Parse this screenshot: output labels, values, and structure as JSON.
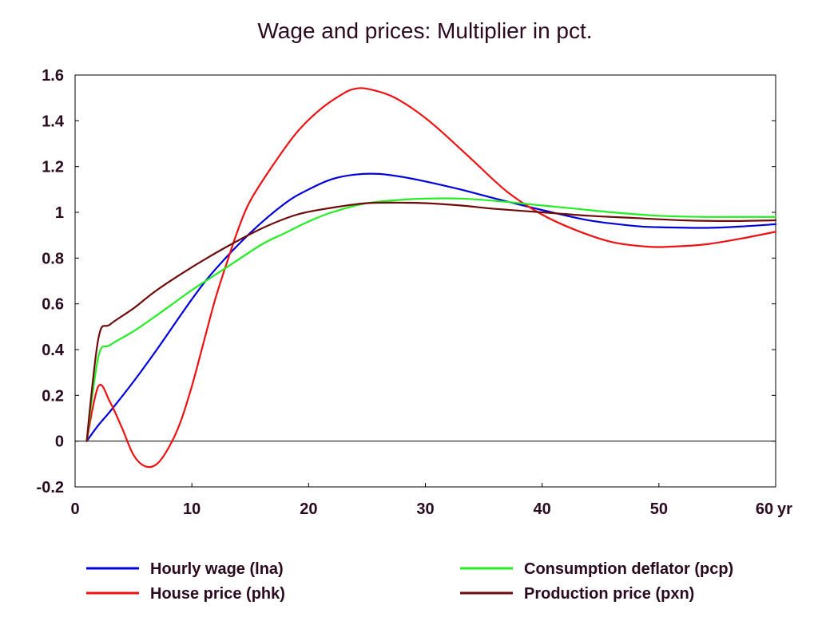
{
  "chart_data": {
    "type": "line",
    "title": "Wage and prices: Multiplier in pct.",
    "xlabel": "",
    "ylabel": "",
    "x_unit_label": "yr",
    "xlim": [
      0,
      60
    ],
    "ylim": [
      -0.2,
      1.6
    ],
    "x_ticks": [
      "0",
      "10",
      "20",
      "30",
      "40",
      "50",
      "60"
    ],
    "y_ticks": [
      "-0.2",
      "0",
      "0.2",
      "0.4",
      "0.6",
      "0.8",
      "1",
      "1.2",
      "1.4",
      "1.6"
    ],
    "grid": false,
    "zero_line": true,
    "legend_position": "bottom",
    "series": [
      {
        "name": "Hourly wage (lna)",
        "color": "#0000dd",
        "points": [
          [
            1,
            0
          ],
          [
            2,
            0.07
          ],
          [
            3,
            0.13
          ],
          [
            5,
            0.26
          ],
          [
            7,
            0.4
          ],
          [
            10,
            0.62
          ],
          [
            12,
            0.75
          ],
          [
            15,
            0.91
          ],
          [
            18,
            1.04
          ],
          [
            20,
            1.1
          ],
          [
            22,
            1.145
          ],
          [
            24,
            1.165
          ],
          [
            26,
            1.168
          ],
          [
            28,
            1.155
          ],
          [
            30,
            1.135
          ],
          [
            33,
            1.1
          ],
          [
            36,
            1.06
          ],
          [
            40,
            1.01
          ],
          [
            44,
            0.965
          ],
          [
            48,
            0.94
          ],
          [
            50,
            0.935
          ],
          [
            54,
            0.932
          ],
          [
            57,
            0.938
          ],
          [
            60,
            0.948
          ]
        ]
      },
      {
        "name": "House price (phk)",
        "color": "#ee1111",
        "points": [
          [
            1,
            0
          ],
          [
            2,
            0.24
          ],
          [
            3,
            0.17
          ],
          [
            4,
            0.06
          ],
          [
            5,
            -0.06
          ],
          [
            6,
            -0.11
          ],
          [
            7,
            -0.1
          ],
          [
            8,
            -0.03
          ],
          [
            9,
            0.08
          ],
          [
            10,
            0.24
          ],
          [
            11,
            0.43
          ],
          [
            12,
            0.62
          ],
          [
            13,
            0.78
          ],
          [
            14,
            0.93
          ],
          [
            15,
            1.05
          ],
          [
            17,
            1.21
          ],
          [
            19,
            1.35
          ],
          [
            21,
            1.45
          ],
          [
            23,
            1.52
          ],
          [
            24,
            1.54
          ],
          [
            25,
            1.54
          ],
          [
            27,
            1.51
          ],
          [
            29,
            1.45
          ],
          [
            31,
            1.37
          ],
          [
            34,
            1.23
          ],
          [
            37,
            1.09
          ],
          [
            40,
            0.99
          ],
          [
            43,
            0.92
          ],
          [
            46,
            0.87
          ],
          [
            49,
            0.85
          ],
          [
            51,
            0.85
          ],
          [
            54,
            0.86
          ],
          [
            57,
            0.885
          ],
          [
            60,
            0.915
          ]
        ]
      },
      {
        "name": "Consumption deflator (pcp)",
        "color": "#22ee22",
        "points": [
          [
            1,
            0
          ],
          [
            2,
            0.37
          ],
          [
            3,
            0.42
          ],
          [
            5,
            0.48
          ],
          [
            7,
            0.55
          ],
          [
            10,
            0.66
          ],
          [
            13,
            0.76
          ],
          [
            16,
            0.86
          ],
          [
            18,
            0.91
          ],
          [
            20,
            0.96
          ],
          [
            22,
            1.0
          ],
          [
            25,
            1.04
          ],
          [
            28,
            1.055
          ],
          [
            30,
            1.06
          ],
          [
            33,
            1.06
          ],
          [
            36,
            1.05
          ],
          [
            40,
            1.03
          ],
          [
            43,
            1.015
          ],
          [
            46,
            1.0
          ],
          [
            50,
            0.985
          ],
          [
            54,
            0.98
          ],
          [
            57,
            0.98
          ],
          [
            60,
            0.98
          ]
        ]
      },
      {
        "name": "Production price (pxn)",
        "color": "#6e0a0a",
        "points": [
          [
            1,
            0
          ],
          [
            2,
            0.45
          ],
          [
            3,
            0.51
          ],
          [
            5,
            0.58
          ],
          [
            7,
            0.66
          ],
          [
            10,
            0.76
          ],
          [
            13,
            0.85
          ],
          [
            16,
            0.93
          ],
          [
            19,
            0.99
          ],
          [
            22,
            1.02
          ],
          [
            25,
            1.04
          ],
          [
            28,
            1.042
          ],
          [
            30,
            1.04
          ],
          [
            33,
            1.03
          ],
          [
            36,
            1.015
          ],
          [
            40,
            1.0
          ],
          [
            44,
            0.985
          ],
          [
            48,
            0.975
          ],
          [
            52,
            0.965
          ],
          [
            56,
            0.962
          ],
          [
            60,
            0.965
          ]
        ]
      }
    ]
  }
}
